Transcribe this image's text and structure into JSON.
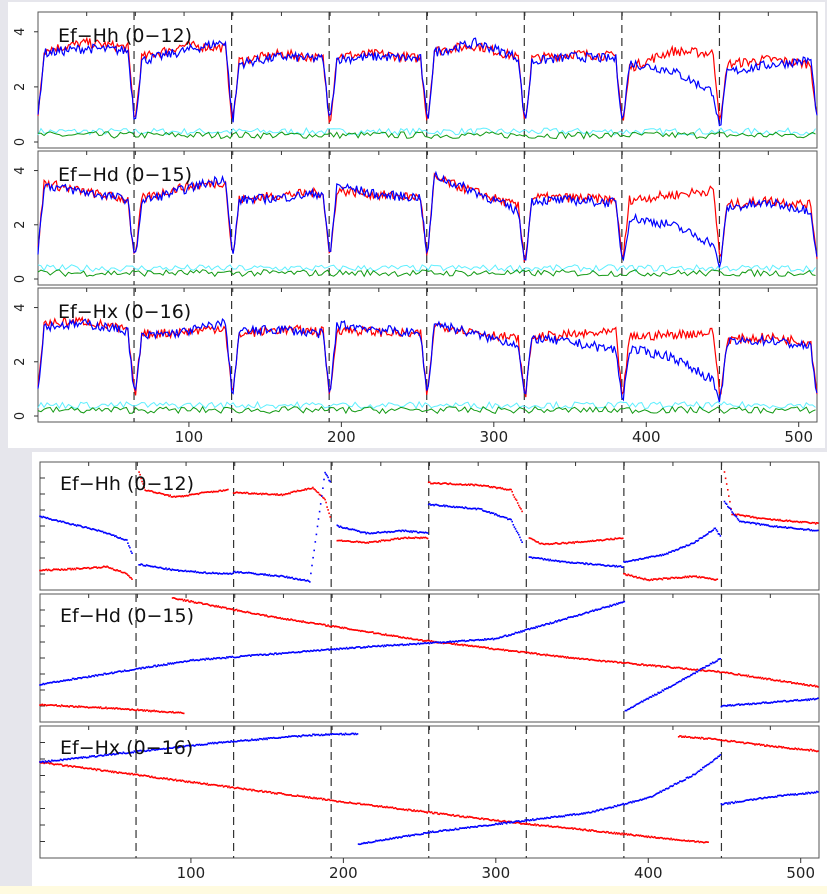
{
  "colors": {
    "red": "#ff0000",
    "blue": "#0000ff",
    "cyan": "#5fefff",
    "green": "#119911",
    "frame": "#555555",
    "tick_text": "#222222"
  },
  "chart_data": [
    {
      "type": "line",
      "x_range": [
        1,
        512
      ],
      "x_ticks": [
        100,
        200,
        300,
        400,
        500
      ],
      "y_range": [
        0,
        4.5
      ],
      "y_ticks": [
        0,
        2,
        4
      ],
      "separators_x": [
        64,
        128,
        192,
        256,
        320,
        384,
        448
      ],
      "panels": [
        {
          "title": "Ef−Hh (0−12)",
          "red_segments": [
            [
              3.3,
              3.6,
              3.4
            ],
            [
              3.0,
              3.5,
              3.4
            ],
            [
              2.9,
              3.2,
              3.0
            ],
            [
              3.1,
              3.2,
              3.0
            ],
            [
              3.3,
              3.5,
              3.0
            ],
            [
              3.0,
              3.2,
              3.1
            ],
            [
              2.6,
              3.3,
              3.2
            ],
            [
              2.8,
              3.0,
              2.8
            ]
          ],
          "blue_segments": [
            [
              3.2,
              3.4,
              3.3
            ],
            [
              2.9,
              3.3,
              3.7
            ],
            [
              2.8,
              3.1,
              3.0
            ],
            [
              3.0,
              3.1,
              3.0
            ],
            [
              3.2,
              3.6,
              3.0
            ],
            [
              2.9,
              3.1,
              3.0
            ],
            [
              2.9,
              2.6,
              1.7
            ],
            [
              2.5,
              2.8,
              3.0
            ]
          ],
          "noise_levels": {
            "cyan": 0.38,
            "green": 0.25
          }
        },
        {
          "title": "Ef−Hd (0−15)",
          "red_segments": [
            [
              3.6,
              3.2,
              2.9
            ],
            [
              2.9,
              3.4,
              3.6
            ],
            [
              2.9,
              3.1,
              3.2
            ],
            [
              3.3,
              3.1,
              3.0
            ],
            [
              3.8,
              3.2,
              2.6
            ],
            [
              3.0,
              3.0,
              2.9
            ],
            [
              2.9,
              3.1,
              3.3
            ],
            [
              2.7,
              2.9,
              2.7
            ]
          ],
          "blue_segments": [
            [
              3.5,
              3.2,
              2.9
            ],
            [
              2.8,
              3.3,
              3.8
            ],
            [
              2.9,
              3.0,
              3.2
            ],
            [
              3.5,
              3.1,
              3.0
            ],
            [
              3.9,
              3.2,
              2.4
            ],
            [
              2.9,
              2.9,
              2.8
            ],
            [
              2.3,
              2.0,
              1.2
            ],
            [
              2.6,
              2.8,
              2.5
            ]
          ],
          "noise_levels": {
            "cyan": 0.4,
            "green": 0.22
          }
        },
        {
          "title": "Ef−Hx (0−16)",
          "red_segments": [
            [
              3.4,
              3.5,
              3.1
            ],
            [
              3.0,
              3.1,
              3.3
            ],
            [
              3.0,
              3.2,
              3.1
            ],
            [
              3.2,
              3.1,
              3.0
            ],
            [
              3.4,
              3.1,
              2.8
            ],
            [
              2.9,
              3.0,
              3.1
            ],
            [
              2.9,
              3.0,
              3.1
            ],
            [
              2.8,
              2.9,
              2.7
            ]
          ],
          "blue_segments": [
            [
              3.3,
              3.4,
              3.1
            ],
            [
              2.9,
              3.1,
              3.5
            ],
            [
              3.1,
              3.2,
              3.0
            ],
            [
              3.4,
              3.2,
              3.0
            ],
            [
              3.5,
              3.0,
              2.6
            ],
            [
              2.9,
              2.7,
              2.4
            ],
            [
              2.5,
              2.2,
              1.2
            ],
            [
              2.7,
              2.8,
              2.5
            ]
          ],
          "noise_levels": {
            "cyan": 0.4,
            "green": 0.22
          }
        }
      ]
    },
    {
      "type": "scatter",
      "x_range": [
        1,
        512
      ],
      "x_ticks": [
        100,
        200,
        300,
        400,
        500
      ],
      "y_range": [
        0,
        1
      ],
      "separators_x": [
        64,
        128,
        192,
        256,
        320,
        384,
        448
      ],
      "panels": [
        {
          "title": "Ef−Hh (0−12)",
          "red": [
            [
              [
                1,
                0.13
              ],
              [
                20,
                0.14
              ],
              [
                45,
                0.16
              ],
              [
                58,
                0.1
              ],
              [
                62,
                0.05
              ]
            ],
            [
              [
                66,
                0.95
              ],
              [
                70,
                0.8
              ],
              [
                90,
                0.74
              ],
              [
                110,
                0.78
              ],
              [
                125,
                0.8
              ]
            ],
            [
              [
                128,
                0.78
              ],
              [
                160,
                0.76
              ],
              [
                180,
                0.82
              ],
              [
                188,
                0.72
              ],
              [
                192,
                0.55
              ]
            ],
            [
              [
                196,
                0.38
              ],
              [
                215,
                0.36
              ],
              [
                240,
                0.4
              ],
              [
                256,
                0.4
              ]
            ],
            [
              [
                256,
                0.86
              ],
              [
                290,
                0.84
              ],
              [
                310,
                0.8
              ],
              [
                318,
                0.6
              ]
            ],
            [
              [
                322,
                0.4
              ],
              [
                330,
                0.35
              ],
              [
                350,
                0.36
              ],
              [
                384,
                0.4
              ]
            ],
            [
              [
                384,
                0.1
              ],
              [
                400,
                0.05
              ],
              [
                430,
                0.08
              ],
              [
                446,
                0.05
              ]
            ],
            [
              [
                450,
                0.95
              ],
              [
                455,
                0.6
              ],
              [
                475,
                0.56
              ],
              [
                512,
                0.52
              ]
            ]
          ],
          "blue": [
            [
              [
                1,
                0.58
              ],
              [
                20,
                0.52
              ],
              [
                40,
                0.46
              ],
              [
                58,
                0.38
              ],
              [
                62,
                0.25
              ]
            ],
            [
              [
                66,
                0.18
              ],
              [
                90,
                0.13
              ],
              [
                110,
                0.11
              ],
              [
                128,
                0.1
              ]
            ],
            [
              [
                128,
                0.12
              ],
              [
                160,
                0.08
              ],
              [
                178,
                0.04
              ],
              [
                188,
                0.95
              ],
              [
                192,
                0.85
              ]
            ],
            [
              [
                196,
                0.5
              ],
              [
                215,
                0.44
              ],
              [
                240,
                0.46
              ],
              [
                256,
                0.44
              ]
            ],
            [
              [
                256,
                0.68
              ],
              [
                290,
                0.64
              ],
              [
                310,
                0.55
              ],
              [
                318,
                0.35
              ]
            ],
            [
              [
                322,
                0.24
              ],
              [
                345,
                0.2
              ],
              [
                384,
                0.16
              ]
            ],
            [
              [
                384,
                0.2
              ],
              [
                410,
                0.26
              ],
              [
                430,
                0.36
              ],
              [
                444,
                0.48
              ],
              [
                448,
                0.4
              ]
            ],
            [
              [
                450,
                0.7
              ],
              [
                460,
                0.54
              ],
              [
                480,
                0.5
              ],
              [
                512,
                0.46
              ]
            ]
          ]
        },
        {
          "title": "Ef−Hd (0−15)",
          "red": [
            [
              [
                1,
                0.11
              ],
              [
                50,
                0.08
              ],
              [
                96,
                0.04
              ]
            ],
            [
              [
                88,
                1.0
              ],
              [
                150,
                0.85
              ],
              [
                250,
                0.65
              ],
              [
                350,
                0.5
              ],
              [
                450,
                0.38
              ],
              [
                512,
                0.26
              ]
            ]
          ],
          "blue": [
            [
              [
                1,
                0.28
              ],
              [
                100,
                0.48
              ],
              [
                200,
                0.58
              ],
              [
                300,
                0.66
              ],
              [
                385,
                0.97
              ]
            ],
            [
              [
                385,
                0.06
              ],
              [
                420,
                0.3
              ],
              [
                448,
                0.5
              ]
            ],
            [
              [
                448,
                0.1
              ],
              [
                480,
                0.13
              ],
              [
                512,
                0.16
              ]
            ]
          ]
        },
        {
          "title": "Ef−Hx (0−16)",
          "red": [
            [
              [
                1,
                0.74
              ],
              [
                100,
                0.58
              ],
              [
                200,
                0.42
              ],
              [
                300,
                0.27
              ],
              [
                400,
                0.14
              ],
              [
                440,
                0.09
              ]
            ],
            [
              [
                420,
                0.95
              ],
              [
                448,
                0.92
              ],
              [
                480,
                0.87
              ],
              [
                512,
                0.83
              ]
            ]
          ],
          "blue": [
            [
              [
                1,
                0.74
              ],
              [
                60,
                0.82
              ],
              [
                120,
                0.9
              ],
              [
                180,
                0.96
              ],
              [
                210,
                0.97
              ]
            ],
            [
              [
                210,
                0.08
              ],
              [
                260,
                0.18
              ],
              [
                320,
                0.27
              ],
              [
                360,
                0.33
              ],
              [
                400,
                0.45
              ],
              [
                430,
                0.64
              ],
              [
                448,
                0.8
              ]
            ],
            [
              [
                448,
                0.4
              ],
              [
                480,
                0.46
              ],
              [
                512,
                0.5
              ]
            ]
          ]
        }
      ]
    }
  ]
}
